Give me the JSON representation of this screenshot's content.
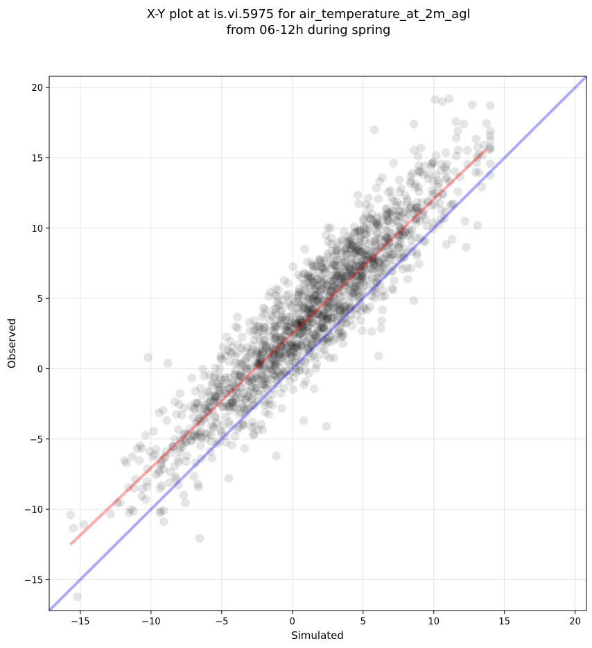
{
  "chart_data": {
    "type": "scatter",
    "title_line1": "X-Y plot at is.vi.5975 for air_temperature_at_2m_agl",
    "title_line2": "from 06-12h during spring",
    "xlabel": "Simulated",
    "ylabel": "Observed",
    "xlim": [
      -17.2,
      20.8
    ],
    "ylim": [
      -17.2,
      20.8
    ],
    "xticks": [
      -15,
      -10,
      -5,
      0,
      5,
      10,
      15,
      20
    ],
    "yticks": [
      -15,
      -10,
      -5,
      0,
      5,
      10,
      15,
      20
    ],
    "tick_labels": [
      "−15",
      "−10",
      "−5",
      "0",
      "5",
      "10",
      "15",
      "20"
    ],
    "grid": true,
    "point_color": "#000000",
    "point_opacity": 0.1,
    "series": [
      {
        "kind": "scatter",
        "n_points": 1500,
        "x_mean": 1.5,
        "x_std": 5.2,
        "fit_slope": 0.96,
        "fit_intercept": 2.6,
        "residual_std": 2.0,
        "outlier_points": [
          [
            -15.7,
            -10.4
          ],
          [
            -10.2,
            0.8
          ],
          [
            -8.8,
            0.4
          ],
          [
            11.1,
            19.2
          ],
          [
            10.6,
            19.0
          ],
          [
            5.8,
            17.0
          ],
          [
            8.6,
            17.4
          ],
          [
            13.1,
            10.2
          ],
          [
            12.2,
            10.5
          ],
          [
            11.3,
            9.2
          ],
          [
            6.1,
            0.9
          ],
          [
            2.4,
            -4.1
          ],
          [
            0.8,
            -3.7
          ],
          [
            -4.5,
            -7.8
          ],
          [
            -9.1,
            -10.1
          ]
        ]
      },
      {
        "kind": "line",
        "role": "regression",
        "color": "#ff0000",
        "opacity": 0.33,
        "x": [
          -15.7,
          13.7
        ],
        "y": [
          -12.5,
          15.6
        ]
      },
      {
        "kind": "line",
        "role": "identity",
        "color": "#0000ff",
        "opacity": 0.33,
        "x": [
          -17.2,
          20.8
        ],
        "y": [
          -17.2,
          20.8
        ]
      }
    ]
  }
}
